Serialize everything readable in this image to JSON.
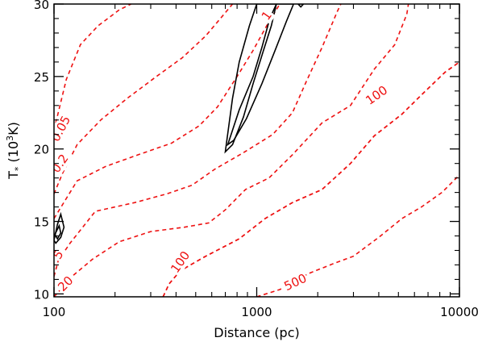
{
  "chart_data": {
    "type": "contour",
    "xlabel": "Distance (pc)",
    "ylabel_main": "T",
    "ylabel_sub": "*",
    "ylabel_unit_prefix": " (10",
    "ylabel_unit_sup": "3",
    "ylabel_unit_suffix": "K)",
    "x_scale": "log",
    "xlim": [
      100,
      10000
    ],
    "ylim": [
      9.8,
      30
    ],
    "x_ticks": [
      {
        "value": 100,
        "label": "100"
      },
      {
        "value": 1000,
        "label": "1000"
      },
      {
        "value": 10000,
        "label": "10000"
      }
    ],
    "y_ticks": [
      {
        "value": 10,
        "label": "10"
      },
      {
        "value": 15,
        "label": "15"
      },
      {
        "value": 20,
        "label": "20"
      },
      {
        "value": 25,
        "label": "25"
      },
      {
        "value": 30,
        "label": "30"
      }
    ],
    "red_contours": [
      {
        "level": "0.05",
        "label": "0.05",
        "label_at": [
          108,
          21.4
        ],
        "label_angle": -62,
        "points": [
          [
            100,
            21.3
          ],
          [
            115,
            24.8
          ],
          [
            135,
            27.2
          ],
          [
            165,
            28.5
          ],
          [
            210,
            29.6
          ],
          [
            240,
            30
          ]
        ]
      },
      {
        "level": "0.2",
        "label": "0.2",
        "label_at": [
          107,
          19.0
        ],
        "label_angle": -55,
        "points": [
          [
            100,
            16.9
          ],
          [
            110,
            18.3
          ],
          [
            130,
            20.3
          ],
          [
            170,
            22.0
          ],
          [
            230,
            23.5
          ],
          [
            320,
            25.0
          ],
          [
            430,
            26.3
          ],
          [
            560,
            27.8
          ],
          [
            700,
            29.4
          ],
          [
            760,
            30
          ]
        ]
      },
      {
        "level": "1",
        "label": "1",
        "label_at": [
          1120,
          29.2
        ],
        "label_angle": -55,
        "points": [
          [
            100,
            15.2
          ],
          [
            130,
            17.8
          ],
          [
            180,
            18.8
          ],
          [
            260,
            19.6
          ],
          [
            380,
            20.4
          ],
          [
            520,
            21.6
          ],
          [
            640,
            22.9
          ],
          [
            800,
            25.0
          ],
          [
            960,
            26.8
          ],
          [
            1150,
            28.8
          ],
          [
            1300,
            30
          ]
        ]
      },
      {
        "level": "5",
        "label": "5",
        "label_at": [
          105,
          12.7
        ],
        "label_angle": -60,
        "points": [
          [
            100,
            11.2
          ],
          [
            105,
            12.3
          ],
          [
            120,
            13.5
          ],
          [
            160,
            15.7
          ],
          [
            250,
            16.3
          ],
          [
            360,
            16.9
          ],
          [
            480,
            17.5
          ],
          [
            620,
            18.6
          ],
          [
            850,
            19.7
          ],
          [
            1200,
            21.0
          ],
          [
            1500,
            22.5
          ],
          [
            1750,
            24.6
          ],
          [
            2100,
            27.0
          ],
          [
            2500,
            29.5
          ],
          [
            2600,
            30
          ]
        ]
      },
      {
        "level": "20",
        "label": "20",
        "label_at": [
          114,
          10.7
        ],
        "label_angle": -45,
        "points": [
          [
            100,
            9.8
          ],
          [
            125,
            11.3
          ],
          [
            155,
            12.4
          ],
          [
            210,
            13.6
          ],
          [
            300,
            14.3
          ],
          [
            440,
            14.6
          ],
          [
            580,
            14.9
          ],
          [
            700,
            15.8
          ],
          [
            880,
            17.2
          ],
          [
            1150,
            18.0
          ],
          [
            1500,
            19.6
          ],
          [
            2100,
            21.8
          ],
          [
            2900,
            23.0
          ],
          [
            3800,
            25.5
          ],
          [
            4800,
            27.2
          ],
          [
            5500,
            29.3
          ],
          [
            5600,
            30
          ]
        ]
      },
      {
        "level": "100",
        "label": "100",
        "label_at": [
          420,
          12.2
        ],
        "label_angle": -55,
        "points": [
          [
            345,
            9.8
          ],
          [
            370,
            10.7
          ],
          [
            420,
            11.6
          ],
          [
            560,
            12.6
          ],
          [
            820,
            13.8
          ],
          [
            1100,
            15.2
          ],
          [
            1500,
            16.3
          ],
          [
            2100,
            17.2
          ],
          [
            2900,
            19.0
          ],
          [
            3800,
            20.9
          ],
          [
            5200,
            22.4
          ],
          [
            6800,
            24.0
          ],
          [
            8500,
            25.3
          ],
          [
            10000,
            26.0
          ]
        ]
      },
      {
        "level": "100",
        "label": "100",
        "label_at": [
          3900,
          23.7
        ],
        "label_angle": -35,
        "points": [
          [
            345,
            9.8
          ],
          [
            370,
            10.7
          ],
          [
            420,
            11.6
          ],
          [
            560,
            12.6
          ],
          [
            820,
            13.8
          ],
          [
            1100,
            15.2
          ],
          [
            1500,
            16.3
          ],
          [
            2100,
            17.2
          ],
          [
            2900,
            19.0
          ],
          [
            3800,
            20.9
          ],
          [
            5200,
            22.4
          ],
          [
            6800,
            24.0
          ],
          [
            8500,
            25.3
          ],
          [
            10000,
            26.0
          ]
        ]
      },
      {
        "level": "500",
        "label": "500",
        "label_at": [
          1550,
          10.8
        ],
        "label_angle": -25,
        "points": [
          [
            1000,
            9.8
          ],
          [
            1300,
            10.3
          ],
          [
            1800,
            11.4
          ],
          [
            2400,
            12.1
          ],
          [
            3000,
            12.6
          ],
          [
            4000,
            13.9
          ],
          [
            5200,
            15.2
          ],
          [
            6500,
            16.0
          ],
          [
            8200,
            17.0
          ],
          [
            10000,
            18.2
          ]
        ]
      }
    ],
    "black_contours": [
      {
        "closed": true,
        "points": [
          [
            700,
            19.8
          ],
          [
            760,
            23.5
          ],
          [
            820,
            26.0
          ],
          [
            920,
            28.5
          ],
          [
            1000,
            30
          ],
          [
            1250,
            30
          ],
          [
            1180,
            28.5
          ],
          [
            1080,
            26.8
          ],
          [
            960,
            24.5
          ],
          [
            860,
            22.2
          ],
          [
            760,
            20.3
          ]
        ]
      },
      {
        "closed": true,
        "points": [
          [
            720,
            20.3
          ],
          [
            820,
            22.7
          ],
          [
            960,
            25.0
          ],
          [
            1060,
            27.0
          ],
          [
            1160,
            29.0
          ],
          [
            1250,
            30
          ],
          [
            1520,
            30
          ],
          [
            1400,
            28.8
          ],
          [
            1240,
            26.9
          ],
          [
            1060,
            24.5
          ],
          [
            890,
            22.1
          ],
          [
            770,
            20.6
          ]
        ]
      },
      {
        "closed": true,
        "points": [
          [
            1600,
            30
          ],
          [
            1650,
            29.8
          ],
          [
            1700,
            30
          ]
        ]
      },
      {
        "closed": true,
        "points": [
          [
            100,
            13.7
          ],
          [
            104,
            14.8
          ],
          [
            108,
            15.5
          ],
          [
            112,
            14.6
          ],
          [
            108,
            13.9
          ],
          [
            102,
            13.5
          ]
        ]
      },
      {
        "closed": true,
        "points": [
          [
            101,
            14.1
          ],
          [
            106,
            14.7
          ],
          [
            108,
            14.2
          ],
          [
            104,
            13.8
          ]
        ]
      }
    ]
  }
}
